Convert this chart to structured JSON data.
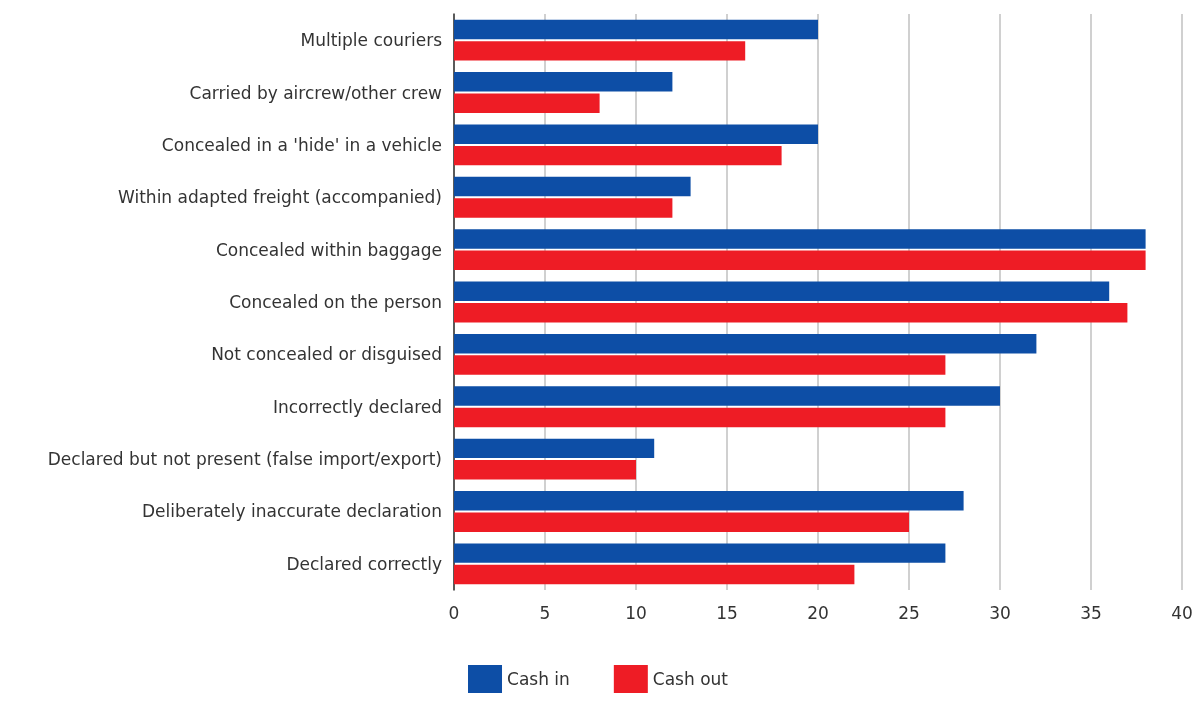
{
  "chart_data": {
    "type": "bar",
    "orientation": "horizontal",
    "categories": [
      "Multiple couriers",
      "Carried by aircrew/other crew",
      "Concealed in a 'hide' in a vehicle",
      "Within adapted freight (accompanied)",
      "Concealed within baggage",
      "Concealed on the person",
      "Not concealed or disguised",
      "Incorrectly declared",
      "Declared but not present (false import/export)",
      "Deliberately inaccurate declaration",
      "Declared correctly"
    ],
    "series": [
      {
        "name": "Cash in",
        "color": "#0d4ea6",
        "values": [
          20,
          12,
          20,
          13,
          38,
          36,
          32,
          30,
          11,
          28,
          27
        ]
      },
      {
        "name": "Cash out",
        "color": "#ee1c25",
        "values": [
          16,
          8,
          18,
          12,
          38,
          37,
          27,
          27,
          10,
          25,
          22
        ]
      }
    ],
    "xlim": [
      0,
      40
    ],
    "xticks": [
      0,
      5,
      10,
      15,
      20,
      25,
      30,
      35,
      40
    ],
    "grid": "x",
    "legend": "bottom"
  }
}
